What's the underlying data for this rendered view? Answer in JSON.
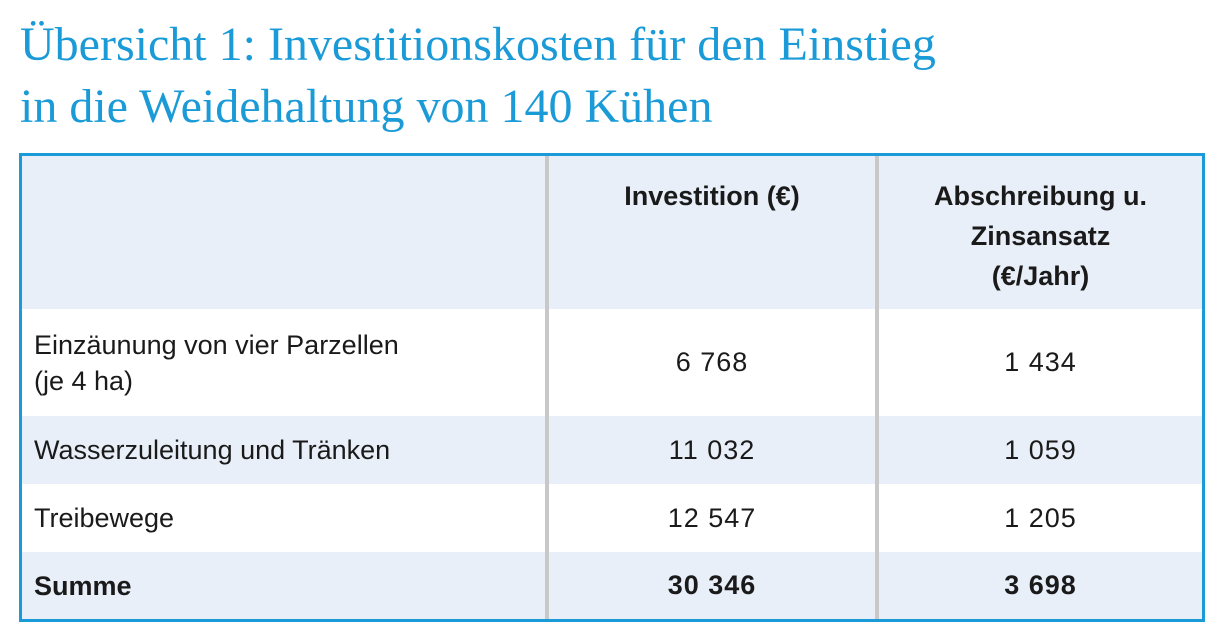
{
  "title": {
    "line1": "Übersicht 1: Investitionskosten für den Einstieg",
    "line2": "in die Weidehaltung von 140 Kühen"
  },
  "table": {
    "headers": {
      "col1": "",
      "col2": "Investition (€)",
      "col3_line1": "Abschreibung u.",
      "col3_line2": "Zinsansatz",
      "col3_line3": "(€/Jahr)"
    },
    "rows": [
      {
        "label_line1": "Einzäunung von vier Parzellen",
        "label_line2": "(je 4 ha)",
        "investition": "6 768",
        "abschreibung": "1 434"
      },
      {
        "label": "Wasserzuleitung und Tränken",
        "investition": "11 032",
        "abschreibung": "1 059"
      },
      {
        "label": "Treibewege",
        "investition": "12 547",
        "abschreibung": "1 205"
      }
    ],
    "total": {
      "label": "Summe",
      "investition": "30 346",
      "abschreibung": "3 698"
    }
  },
  "colors": {
    "accent": "#1a9ad6",
    "row_shade": "#e8eff8",
    "divider": "#c8c8c8"
  }
}
